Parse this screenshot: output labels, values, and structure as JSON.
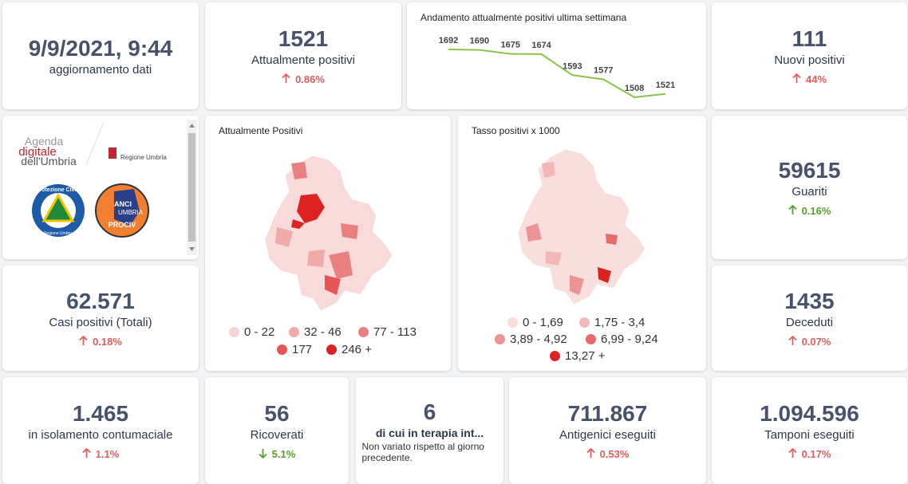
{
  "cards": [
    {
      "value": "9/9/2021, 9:44",
      "label": "aggiornamento dati"
    },
    {
      "value": "1521",
      "label": "Attualmente positivi",
      "change": {
        "text": "0.86%",
        "direction": "up",
        "color": "#e25c5c"
      }
    },
    {
      "value": "111",
      "label": "Nuovi positivi",
      "change": {
        "text": "44%",
        "direction": "up",
        "color": "#e25c5c"
      }
    },
    {
      "value": "59615",
      "label": "Guariti",
      "change": {
        "text": "0.16%",
        "direction": "up",
        "color": "#5a9e2a"
      }
    },
    {
      "value": "62.571",
      "label": "Casi positivi (Totali)",
      "change": {
        "text": "0.18%",
        "direction": "up",
        "color": "#e25c5c"
      }
    },
    {
      "value": "1435",
      "label": "Deceduti",
      "change": {
        "text": "0.07%",
        "direction": "up",
        "color": "#e25c5c"
      }
    },
    {
      "value": "1.465",
      "label": "in isolamento contumaciale",
      "change": {
        "text": "1.1%",
        "direction": "up",
        "color": "#e25c5c"
      }
    },
    {
      "value": "56",
      "label": "Ricoverati",
      "change": {
        "text": "5.1%",
        "direction": "down",
        "color": "#5a9e2a"
      }
    },
    {
      "value": "6",
      "label": "di cui in terapia int...",
      "note": "Non variato rispetto al giorno precedente."
    },
    {
      "value": "711.867",
      "label": "Antigenici eseguiti",
      "change": {
        "text": "0.53%",
        "direction": "up",
        "color": "#e25c5c"
      }
    },
    {
      "value": "1.094.596",
      "label": "Tamponi eseguiti",
      "change": {
        "text": "0.17%",
        "direction": "up",
        "color": "#e25c5c"
      }
    }
  ],
  "trend": {
    "title": "Andamento attualmente positivi ultima settimana",
    "values": [
      1692,
      1690,
      1675,
      1674,
      1593,
      1577,
      1508,
      1521
    ],
    "color": "#8bc34a"
  },
  "logos": {
    "agenda": [
      "Agenda",
      "digitale",
      "dell'Umbria"
    ],
    "regione": "Regione Umbria",
    "protezione": "Protezione Civile",
    "protezione_sub": "Regione Umbria",
    "anci": [
      "ANCI",
      "UMBRIA",
      "PROCIV"
    ]
  },
  "maps": [
    {
      "title": "Attualmente Positivi",
      "legend": [
        {
          "label": "0 - 22",
          "color": "#f7d4d4"
        },
        {
          "label": "32 - 46",
          "color": "#f0aaaa"
        },
        {
          "label": "77 - 113",
          "color": "#e98080"
        },
        {
          "label": "177",
          "color": "#e55555"
        },
        {
          "label": "246 +",
          "color": "#dd2222"
        }
      ]
    },
    {
      "title": "Tasso positivi x 1000",
      "legend": [
        {
          "label": "0 - 1,69",
          "color": "#f9dede"
        },
        {
          "label": "1,75 - 3,4",
          "color": "#f2b8b8"
        },
        {
          "label": "3,89 - 4,92",
          "color": "#ec9393"
        },
        {
          "label": "6,99 - 9,24",
          "color": "#e66a6a"
        },
        {
          "label": "13,27 +",
          "color": "#dd2222"
        }
      ]
    }
  ]
}
